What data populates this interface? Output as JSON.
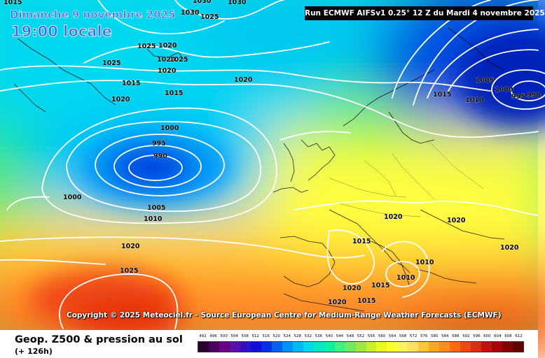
{
  "header": {
    "date": "Dimanche 9 novembre 2025",
    "time": "19:00 locale",
    "run": "Run ECMWF AIFSv1 0.25° 12 Z du Mardi 4 novembre 2025"
  },
  "copyright": "Copyright © 2025 Meteociel.fr - Source European Centre for Medium-Range Weather Forecasts (ECMWF)",
  "footer": {
    "title": "Geop. Z500 & pression au sol",
    "subtitle": "(+ 126h)"
  },
  "legend": {
    "values": [
      "492",
      "496",
      "500",
      "504",
      "508",
      "512",
      "516",
      "520",
      "524",
      "528",
      "532",
      "536",
      "540",
      "544",
      "548",
      "552",
      "556",
      "560",
      "564",
      "568",
      "572",
      "576",
      "580",
      "584",
      "588",
      "592",
      "596",
      "600",
      "604",
      "608",
      "612"
    ],
    "colors": [
      "#2a0030",
      "#4b0060",
      "#6a0090",
      "#5a10b0",
      "#3010c0",
      "#1010d0",
      "#0030e0",
      "#0060f0",
      "#0090f8",
      "#00b8ff",
      "#00d8f0",
      "#00e8c8",
      "#10f0a0",
      "#40f080",
      "#70e860",
      "#a0e840",
      "#c8f030",
      "#e8f820",
      "#ffff30",
      "#fff060",
      "#ffe060",
      "#ffc830",
      "#ffa820",
      "#ff8c20",
      "#ff6a10",
      "#f04a10",
      "#d83010",
      "#c01010",
      "#a00808",
      "#800000",
      "#600000"
    ]
  },
  "map": {
    "colors": {
      "ocean_mid": "#00d0e8",
      "low_center": "#0018c0",
      "north_east": "#0030c8",
      "yellow": "#ffff40",
      "orange": "#ff9020",
      "red": "#f04010",
      "isobar": "#ffffff",
      "coast": "#000000"
    },
    "isobar_labels": [
      {
        "text": "1015"
      },
      {
        "text": "1030"
      },
      {
        "text": "1030"
      },
      {
        "text": "1030"
      },
      {
        "text": "1025"
      },
      {
        "text": "1020"
      },
      {
        "text": "1025"
      },
      {
        "text": "1020"
      },
      {
        "text": "1025"
      },
      {
        "text": "1025"
      },
      {
        "text": "1020"
      },
      {
        "text": "1015"
      },
      {
        "text": "1020"
      },
      {
        "text": "1015"
      },
      {
        "text": "1020"
      },
      {
        "text": "1000"
      },
      {
        "text": "995"
      },
      {
        "text": "990"
      },
      {
        "text": "1000"
      },
      {
        "text": "1005"
      },
      {
        "text": "1010"
      },
      {
        "text": "1020"
      },
      {
        "text": "1025"
      },
      {
        "text": "1015"
      },
      {
        "text": "1010"
      },
      {
        "text": "1005"
      },
      {
        "text": "1000"
      },
      {
        "text": "995"
      },
      {
        "text": "990"
      },
      {
        "text": "1020"
      },
      {
        "text": "1020"
      },
      {
        "text": "1020"
      },
      {
        "text": "1015"
      },
      {
        "text": "1010"
      },
      {
        "text": "1010"
      },
      {
        "text": "1015"
      },
      {
        "text": "1020"
      },
      {
        "text": "1015"
      },
      {
        "text": "1020"
      }
    ]
  }
}
